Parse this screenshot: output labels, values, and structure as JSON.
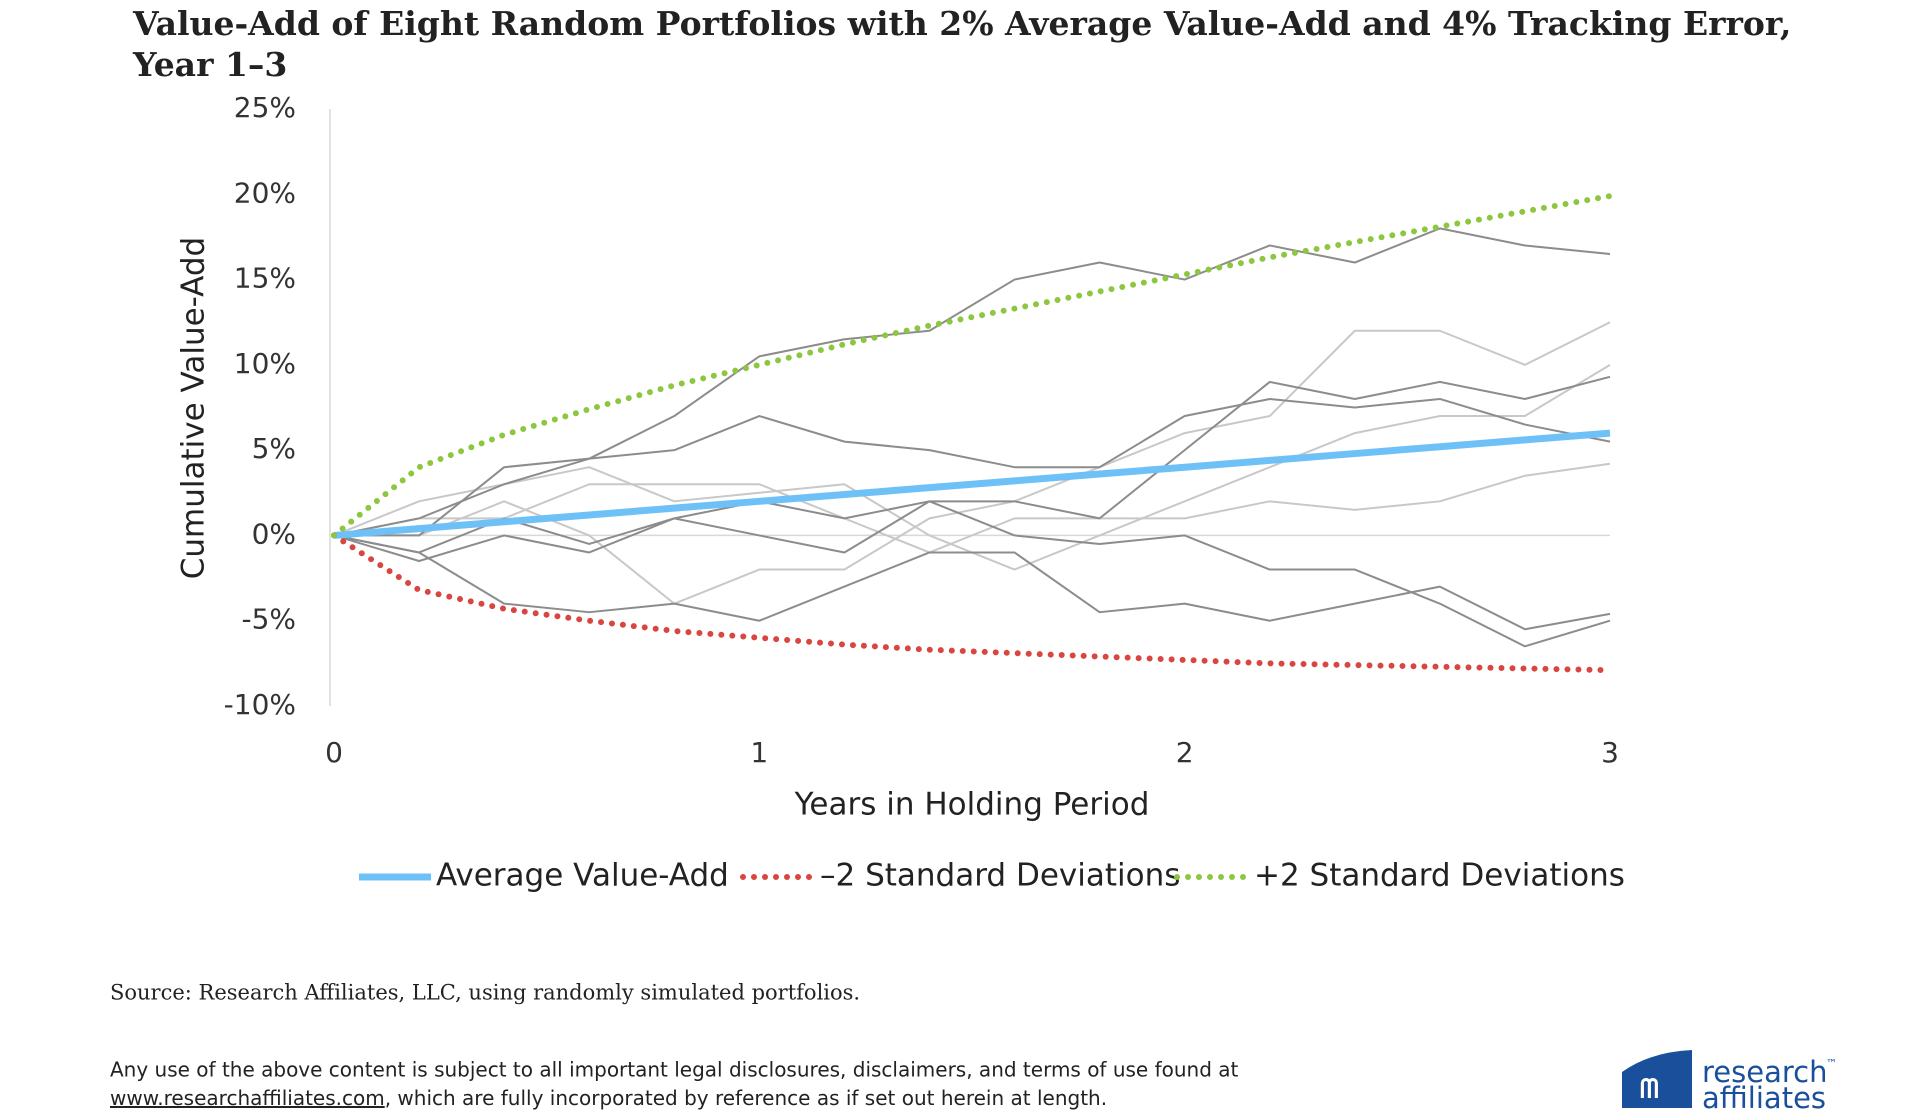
{
  "chart_data": {
    "type": "line",
    "title": [
      "Value-Add of Eight Random Portfolios with 2% Average Value-Add and 4% Tracking Error,",
      "Year 1–3"
    ],
    "x_label": "Years in Holding Period",
    "y_label": "Cumulative Value-Add",
    "x": [
      0,
      0.2,
      0.4,
      0.6,
      0.8,
      1,
      1.2,
      1.4,
      1.6,
      1.8,
      2,
      2.2,
      2.4,
      2.6,
      2.8,
      3
    ],
    "xlim": [
      0,
      3
    ],
    "xticks": [
      0,
      1,
      2,
      3
    ],
    "ylim": [
      -10,
      25
    ],
    "yticks": [
      {
        "value": -10,
        "label": "-10%"
      },
      {
        "value": -5,
        "label": "-5%"
      },
      {
        "value": 0,
        "label": "0%"
      },
      {
        "value": 5,
        "label": "5%"
      },
      {
        "value": 10,
        "label": "10%"
      },
      {
        "value": 15,
        "label": "15%"
      },
      {
        "value": 20,
        "label": "20%"
      },
      {
        "value": 25,
        "label": "25%"
      }
    ],
    "series": [
      {
        "color": "#c8c8c8",
        "values": [
          0,
          0,
          2,
          0,
          -4,
          -2,
          -2,
          1,
          2,
          4,
          6,
          7,
          12,
          12,
          10,
          12.5
        ]
      },
      {
        "color": "#c8c8c8",
        "values": [
          0,
          2,
          3,
          4,
          2,
          2.5,
          3,
          0,
          -2,
          0,
          2,
          4,
          6,
          7,
          7,
          10
        ]
      },
      {
        "color": "#c8c8c8",
        "values": [
          0,
          1,
          1,
          3,
          3,
          3,
          1,
          -1,
          1,
          1,
          1,
          2,
          1.5,
          2,
          3.5,
          4.2
        ]
      },
      {
        "color": "#8c8c8c",
        "values": [
          0,
          1,
          3,
          4.5,
          7,
          10.5,
          11.5,
          12,
          15,
          16,
          15,
          17,
          16,
          18,
          17,
          16.5
        ]
      },
      {
        "color": "#8c8c8c",
        "values": [
          0,
          -1,
          -4,
          -4.5,
          -4,
          -5,
          -3,
          -1,
          -1,
          -4.5,
          -4,
          -5,
          -4,
          -3,
          -5.5,
          -4.6
        ]
      },
      {
        "color": "#8c8c8c",
        "values": [
          0,
          -1,
          1,
          -0.5,
          1,
          2,
          1,
          2,
          0,
          -0.5,
          0,
          -2,
          -2,
          -4,
          -6.5,
          -5
        ]
      },
      {
        "color": "#8c8c8c",
        "values": [
          0,
          -1.5,
          0,
          -1,
          1,
          0,
          -1,
          2,
          2,
          1,
          5,
          9,
          8,
          9,
          8,
          9.3
        ]
      },
      {
        "color": "#8c8c8c",
        "values": [
          0,
          0,
          4,
          4.5,
          5,
          7,
          5.5,
          5,
          4,
          4,
          7,
          8,
          7.5,
          8,
          6.5,
          5.5
        ]
      },
      {
        "name": "Average Value-Add",
        "color": "#6ec1f7",
        "style": "solid",
        "values": [
          0,
          0.4,
          0.8,
          1.2,
          1.6,
          2,
          2.4,
          2.8,
          3.2,
          3.6,
          4,
          4.4,
          4.8,
          5.2,
          5.6,
          6
        ]
      },
      {
        "name": "–2 Standard Deviations",
        "color": "#d9453f",
        "style": "dotted",
        "values": [
          0,
          -3.2,
          -4.3,
          -5,
          -5.6,
          -6,
          -6.4,
          -6.7,
          -6.9,
          -7.1,
          -7.3,
          -7.5,
          -7.6,
          -7.7,
          -7.8,
          -7.9
        ]
      },
      {
        "name": "+2 Standard Deviations",
        "color": "#8dc63f",
        "style": "dotted",
        "values": [
          0,
          4,
          5.9,
          7.4,
          8.8,
          10,
          11.2,
          12.3,
          13.3,
          14.3,
          15.3,
          16.3,
          17.2,
          18.1,
          19,
          19.9
        ]
      }
    ]
  },
  "source": "Source: Research Affiliates, LLC, using randomly simulated portfolios.",
  "disclaimer": {
    "line1": "Any use of the above content is subject to all important legal disclosures, disclaimers, and terms of use found at",
    "link": "www.researchaffiliates.com",
    "line2": ", which are fully incorporated by reference as if set out herein at length."
  },
  "logo": {
    "line1": "research",
    "tm": "™",
    "line2": "affiliates"
  }
}
